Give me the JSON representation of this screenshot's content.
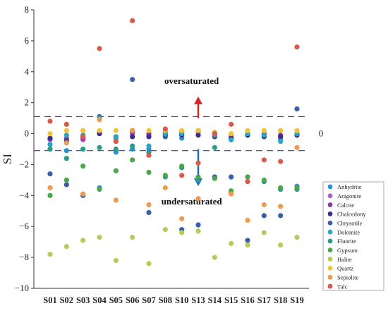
{
  "chart_data": {
    "type": "scatter",
    "title": "",
    "ylabel": "SI",
    "xlabel": "",
    "categories": [
      "S01",
      "S02",
      "S03",
      "S04",
      "S05",
      "S06",
      "S07",
      "S08",
      "S10",
      "S13",
      "S14",
      "S15",
      "S16",
      "S17",
      "S18",
      "S19"
    ],
    "ylim": [
      -10,
      8
    ],
    "yticks": [
      -10,
      -8,
      -6,
      -4,
      -2,
      0,
      2,
      4,
      6,
      8
    ],
    "grid": false,
    "legend_position": "right-bottom",
    "reference_lines": [
      {
        "y": 1.1,
        "style": "dashed",
        "color": "#3a3aa8"
      },
      {
        "y": -1.1,
        "style": "dashed",
        "color": "#3a3aa8"
      }
    ],
    "right_label": "0",
    "annotations": [
      {
        "text": "oversaturated",
        "x": "S10",
        "y": 3.4
      },
      {
        "text": "undersaturated",
        "x": "S10",
        "y": -4.4
      }
    ],
    "arrows": [
      {
        "direction": "up",
        "color": "#d62728",
        "x": "S13",
        "from": 1.0,
        "to": 2.4
      },
      {
        "direction": "down",
        "color": "#1f6fb4",
        "x": "S13",
        "from": -1.0,
        "to": -3.4
      }
    ],
    "series": [
      {
        "name": "Anhydrite",
        "color": "#2b8fd9",
        "values": [
          -1.0,
          -1.1,
          -1.0,
          -3.5,
          -1.2,
          -1.0,
          -1.0,
          -0.1,
          -0.3,
          -3.0,
          -2.8,
          -2.8,
          -0.1,
          -0.1,
          -0.4,
          -3.4
        ]
      },
      {
        "name": "Aragonite",
        "color": "#b05ec9",
        "values": [
          -0.4,
          -0.4,
          -0.4,
          0.0,
          -0.3,
          0.0,
          -0.1,
          0.0,
          0.0,
          0.1,
          -0.1,
          -0.3,
          -0.1,
          -0.1,
          -0.2,
          -0.1
        ]
      },
      {
        "name": "Calcite",
        "color": "#8a3d9e",
        "values": [
          -0.3,
          -0.3,
          -0.3,
          0.1,
          -0.2,
          0.1,
          0.0,
          0.1,
          0.1,
          0.2,
          0.0,
          -0.2,
          0.0,
          0.0,
          -0.1,
          0.0
        ]
      },
      {
        "name": "Chalcedony",
        "color": "#3a2f8c",
        "values": [
          -0.3,
          -0.5,
          -0.2,
          0.0,
          -0.2,
          -0.2,
          -0.2,
          -0.1,
          -0.1,
          -0.1,
          -0.2,
          -0.3,
          -0.1,
          -0.2,
          -0.2,
          -0.1
        ]
      },
      {
        "name": "Chrysotile",
        "color": "#3a5fa8",
        "values": [
          -2.6,
          -3.3,
          -4.0,
          1.1,
          -0.5,
          3.5,
          -5.1,
          -0.2,
          -6.2,
          -5.9,
          -2.8,
          -2.8,
          -6.9,
          -5.3,
          -5.3,
          1.6
        ]
      },
      {
        "name": "Dolomite",
        "color": "#2aa6c0",
        "values": [
          -0.7,
          -0.1,
          -0.1,
          1.0,
          -0.2,
          0.2,
          -0.8,
          0.0,
          0.0,
          0.2,
          -0.1,
          -0.4,
          0.0,
          -0.1,
          -0.5,
          0.0
        ]
      },
      {
        "name": "Fluorite",
        "color": "#2a9a8a",
        "values": [
          -1.0,
          -1.6,
          -1.0,
          -0.9,
          -1.0,
          -0.8,
          -1.2,
          -2.8,
          -2.2,
          -2.9,
          -0.9,
          -3.8,
          -2.8,
          -3.1,
          -3.6,
          -3.6
        ]
      },
      {
        "name": "Gypsum",
        "color": "#4aa84a",
        "values": [
          -4.0,
          -3.0,
          -2.1,
          -3.6,
          -2.4,
          -1.7,
          -2.5,
          -2.7,
          -2.1,
          -2.8,
          -2.9,
          -3.7,
          -2.8,
          -3.0,
          -3.5,
          -3.5
        ]
      },
      {
        "name": "Halite",
        "color": "#b3cc5a",
        "values": [
          -7.8,
          -7.3,
          -6.9,
          -6.7,
          -8.2,
          -6.7,
          -8.4,
          -6.2,
          -6.4,
          -6.3,
          -8.0,
          -7.1,
          -7.2,
          -6.4,
          -7.2,
          -6.7
        ]
      },
      {
        "name": "Quartz",
        "color": "#f2c43a",
        "values": [
          0.0,
          0.2,
          0.2,
          0.2,
          0.2,
          0.2,
          0.2,
          0.2,
          0.2,
          0.2,
          0.1,
          0.0,
          0.2,
          0.2,
          0.2,
          0.2
        ]
      },
      {
        "name": "Sepiolite",
        "color": "#f09a50",
        "values": [
          -3.5,
          -0.6,
          -3.9,
          0.9,
          -4.3,
          0.2,
          -4.6,
          -3.5,
          -5.5,
          -4.2,
          0.0,
          -3.9,
          -5.6,
          -4.6,
          -4.7,
          -0.9
        ]
      },
      {
        "name": "Talc",
        "color": "#d95a4a",
        "values": [
          0.8,
          0.6,
          -0.2,
          5.5,
          -0.5,
          7.3,
          -1.4,
          0.3,
          -2.7,
          -1.9,
          0.0,
          0.6,
          -3.1,
          -1.7,
          -1.8,
          5.6
        ]
      }
    ]
  }
}
